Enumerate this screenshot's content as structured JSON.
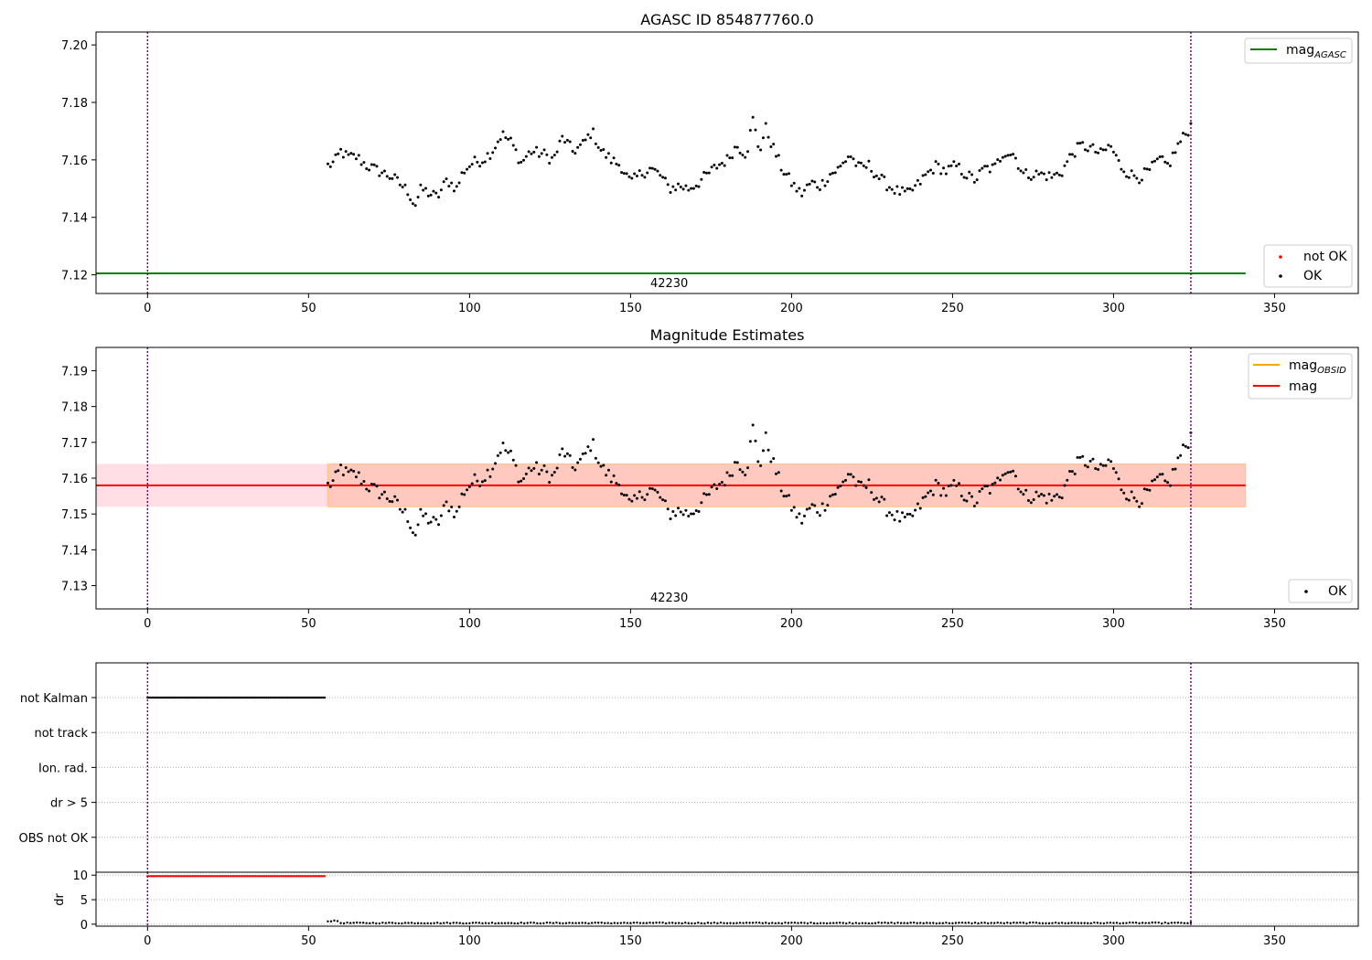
{
  "colors": {
    "ok": "#000000",
    "not_ok": "#ff0000",
    "agasc_line": "#008000",
    "obsid_line": "#ffa500",
    "mag_line": "#ff0000",
    "band_pink": "#ffc0cb",
    "band_orange": "#ffa07a",
    "vline": "#800080",
    "grid": "#b0b0b0"
  },
  "chart_data": [
    {
      "type": "scatter",
      "title": "AGASC ID 854877760.0",
      "xlim": [
        -16,
        376
      ],
      "ylim": [
        7.1135,
        7.2045
      ],
      "xticks": [
        0,
        50,
        100,
        150,
        200,
        250,
        300,
        350
      ],
      "yticks": [
        7.12,
        7.14,
        7.16,
        7.18,
        7.2
      ],
      "ytick_labels": [
        "7.12",
        "7.14",
        "7.16",
        "7.18",
        "7.20"
      ],
      "mag_agasc": 7.1205,
      "agasc_line_x": [
        -16,
        341
      ],
      "vlines": [
        0,
        324
      ],
      "obsid_label": "42230",
      "obsid_label_pos": [
        162,
        7.1158
      ],
      "legend_top": [
        {
          "label": "mag",
          "sub": "AGASC",
          "color": "#008000"
        }
      ],
      "legend_bottom": [
        {
          "label": "not OK",
          "color": "#ff0000"
        },
        {
          "label": "OK",
          "color": "#000000"
        }
      ],
      "series": {
        "name": "OK",
        "source": "mag_series"
      }
    },
    {
      "type": "scatter",
      "title": "Magnitude Estimates",
      "xlim": [
        -16,
        376
      ],
      "ylim": [
        7.1235,
        7.1965
      ],
      "xticks": [
        0,
        50,
        100,
        150,
        200,
        250,
        300,
        350
      ],
      "yticks": [
        7.13,
        7.14,
        7.15,
        7.16,
        7.17,
        7.18,
        7.19
      ],
      "ytick_labels": [
        "7.13",
        "7.14",
        "7.15",
        "7.16",
        "7.17",
        "7.18",
        "7.19"
      ],
      "mag": 7.158,
      "mag_band": [
        7.152,
        7.164
      ],
      "band_x": [
        -16,
        341
      ],
      "vlines": [
        0,
        324
      ],
      "obsid_label": "42230",
      "obsid_label_pos": [
        162,
        7.1255
      ],
      "legend_top": [
        {
          "label": "mag",
          "sub": "OBSID",
          "color": "#ffa500"
        },
        {
          "label": "mag",
          "sub": "",
          "color": "#ff0000"
        }
      ],
      "legend_bottom": [
        {
          "label": "OK",
          "color": "#000000"
        }
      ],
      "series": {
        "name": "OK",
        "source": "mag_series"
      }
    },
    {
      "type": "scatter",
      "title": "",
      "xlim": [
        -16,
        376
      ],
      "categories": [
        "not Kalman",
        "not track",
        "Ion. rad.",
        "dr > 5",
        "OBS not OK"
      ],
      "flag_series": {
        "category": "not Kalman",
        "x_range": [
          0,
          55
        ],
        "step": 0.5
      },
      "vlines": [
        0,
        324
      ]
    },
    {
      "type": "scatter",
      "title": "",
      "ylabel": "dr",
      "xlim": [
        -16,
        376
      ],
      "ylim": [
        -0.4,
        10.6
      ],
      "xticks": [
        0,
        50,
        100,
        150,
        200,
        250,
        300,
        350
      ],
      "yticks": [
        0,
        5,
        10
      ],
      "ytick_labels": [
        "0",
        "5",
        "10"
      ],
      "dr_flagged": {
        "value": 9.8,
        "x_range": [
          0,
          55
        ],
        "step": 0.5
      },
      "dr_ok": {
        "x_range": [
          56,
          324
        ],
        "base": 0.25,
        "amplitude": 0.2
      },
      "vlines": [
        0,
        324
      ]
    }
  ],
  "mag_series": {
    "start": 56,
    "end": 324,
    "step": 0.8,
    "anchors": [
      [
        56,
        7.158
      ],
      [
        58,
        7.159
      ],
      [
        60,
        7.163
      ],
      [
        62,
        7.161
      ],
      [
        65,
        7.161
      ],
      [
        68,
        7.158
      ],
      [
        72,
        7.156
      ],
      [
        76,
        7.154
      ],
      [
        79,
        7.151
      ],
      [
        81,
        7.149
      ],
      [
        83,
        7.144
      ],
      [
        85,
        7.15
      ],
      [
        88,
        7.148
      ],
      [
        90,
        7.147
      ],
      [
        93,
        7.153
      ],
      [
        96,
        7.15
      ],
      [
        98,
        7.156
      ],
      [
        101,
        7.159
      ],
      [
        104,
        7.16
      ],
      [
        107,
        7.163
      ],
      [
        110,
        7.169
      ],
      [
        113,
        7.166
      ],
      [
        116,
        7.159
      ],
      [
        119,
        7.163
      ],
      [
        123,
        7.162
      ],
      [
        126,
        7.16
      ],
      [
        129,
        7.168
      ],
      [
        132,
        7.163
      ],
      [
        135,
        7.165
      ],
      [
        138,
        7.17
      ],
      [
        141,
        7.163
      ],
      [
        144,
        7.16
      ],
      [
        147,
        7.158
      ],
      [
        150,
        7.152
      ],
      [
        153,
        7.155
      ],
      [
        156,
        7.157
      ],
      [
        159,
        7.155
      ],
      [
        162,
        7.15
      ],
      [
        165,
        7.151
      ],
      [
        168,
        7.15
      ],
      [
        171,
        7.152
      ],
      [
        174,
        7.155
      ],
      [
        177,
        7.158
      ],
      [
        180,
        7.16
      ],
      [
        183,
        7.165
      ],
      [
        186,
        7.162
      ],
      [
        188,
        7.174
      ],
      [
        190,
        7.163
      ],
      [
        192,
        7.171
      ],
      [
        194,
        7.165
      ],
      [
        197,
        7.157
      ],
      [
        200,
        7.152
      ],
      [
        203,
        7.148
      ],
      [
        206,
        7.152
      ],
      [
        209,
        7.151
      ],
      [
        212,
        7.155
      ],
      [
        215,
        7.157
      ],
      [
        218,
        7.162
      ],
      [
        221,
        7.157
      ],
      [
        224,
        7.158
      ],
      [
        227,
        7.154
      ],
      [
        230,
        7.151
      ],
      [
        233,
        7.149
      ],
      [
        236,
        7.148
      ],
      [
        239,
        7.151
      ],
      [
        242,
        7.155
      ],
      [
        245,
        7.158
      ],
      [
        248,
        7.156
      ],
      [
        251,
        7.158
      ],
      [
        254,
        7.155
      ],
      [
        257,
        7.153
      ],
      [
        260,
        7.157
      ],
      [
        263,
        7.157
      ],
      [
        266,
        7.163
      ],
      [
        269,
        7.162
      ],
      [
        272,
        7.155
      ],
      [
        275,
        7.155
      ],
      [
        278,
        7.155
      ],
      [
        281,
        7.154
      ],
      [
        284,
        7.156
      ],
      [
        287,
        7.162
      ],
      [
        290,
        7.165
      ],
      [
        293,
        7.164
      ],
      [
        296,
        7.162
      ],
      [
        299,
        7.165
      ],
      [
        302,
        7.158
      ],
      [
        305,
        7.155
      ],
      [
        308,
        7.154
      ],
      [
        311,
        7.156
      ],
      [
        314,
        7.16
      ],
      [
        317,
        7.158
      ],
      [
        320,
        7.165
      ],
      [
        323,
        7.17
      ],
      [
        324,
        7.172
      ]
    ]
  }
}
